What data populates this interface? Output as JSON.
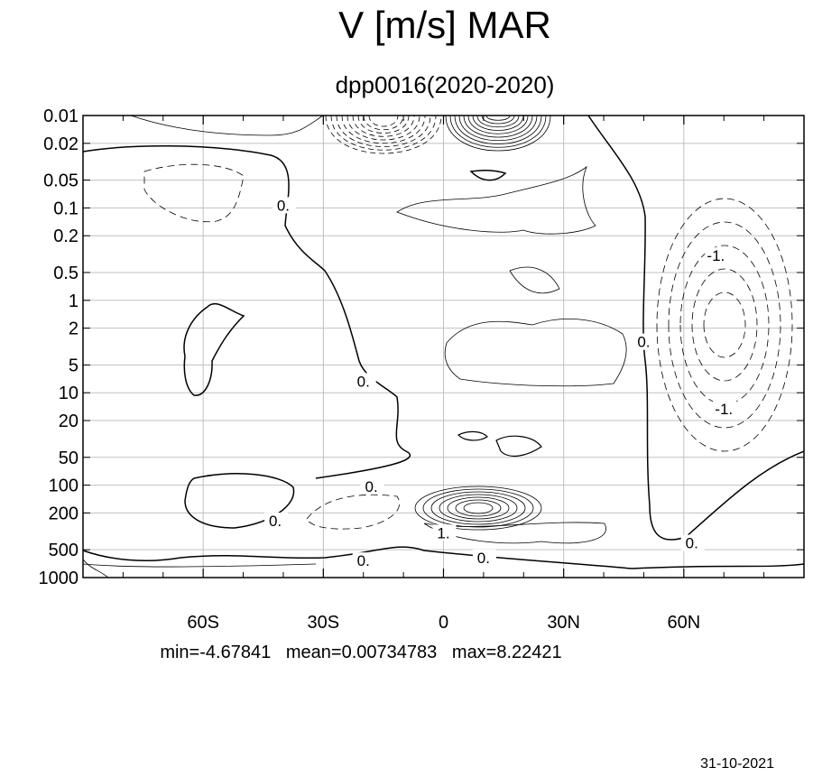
{
  "chart_data": {
    "type": "contour",
    "title": "V [m/s] MAR",
    "subtitle": "dpp0016(2020-2020)",
    "x_ticks": [
      {
        "value": -60,
        "label": "60S"
      },
      {
        "value": -30,
        "label": "30S"
      },
      {
        "value": 0,
        "label": "0"
      },
      {
        "value": 30,
        "label": "30N"
      },
      {
        "value": 60,
        "label": "60N"
      }
    ],
    "x_range": [
      -90,
      90
    ],
    "y_scale": "log",
    "y_inverted": true,
    "y_range": [
      0.01,
      1000
    ],
    "y_ticks": [
      "0.01",
      "0.02",
      "0.05",
      "0.1",
      "0.2",
      "0.5",
      "1",
      "2",
      "5",
      "10",
      "20",
      "50",
      "100",
      "200",
      "500",
      "1000"
    ],
    "grid": true,
    "contour_labels": [
      {
        "text": "0.",
        "x": -40,
        "y": 0.1
      },
      {
        "text": "0.",
        "x": -20,
        "y": 8
      },
      {
        "text": "0.",
        "x": -18,
        "y": 110
      },
      {
        "text": "0.",
        "x": -42,
        "y": 260
      },
      {
        "text": "0.",
        "x": -20,
        "y": 700
      },
      {
        "text": "1.",
        "x": 0,
        "y": 350
      },
      {
        "text": "0.",
        "x": 10,
        "y": 650
      },
      {
        "text": "0.",
        "x": 50,
        "y": 3
      },
      {
        "text": "-1.",
        "x": 68,
        "y": 0.35
      },
      {
        "text": "-1.",
        "x": 70,
        "y": 16
      },
      {
        "text": "0.",
        "x": 62,
        "y": 450
      }
    ],
    "stats": {
      "min": "-4.67841",
      "mean": "0.00734783",
      "max": "8.22421"
    }
  },
  "stats_text": "min=-4.67841   mean=0.00734783   max=8.22421",
  "date": "31-10-2021"
}
